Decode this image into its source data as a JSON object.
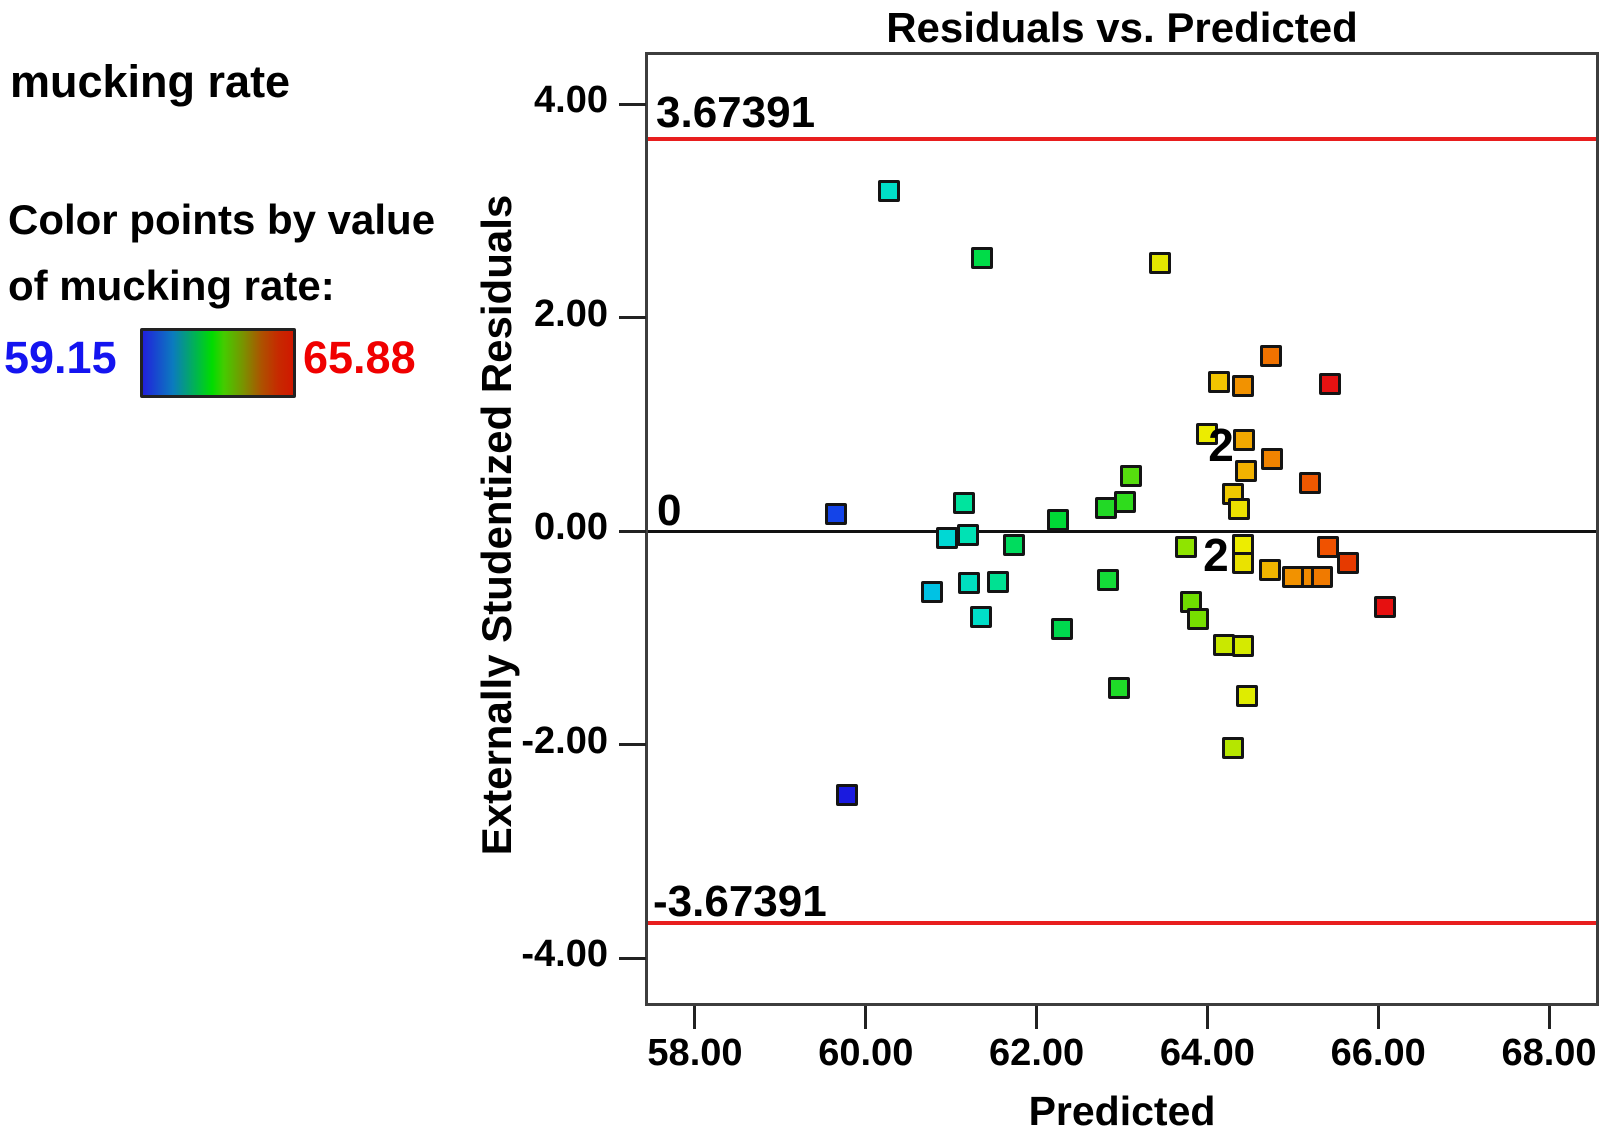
{
  "legend": {
    "factor_label": "mucking rate",
    "color_note_line1": "Color points by value",
    "color_note_line2": "of mucking rate:",
    "min_value": "59.15",
    "max_value": "65.88",
    "min_color": "#1414F0",
    "max_color": "#F00000"
  },
  "chart_data": {
    "type": "scatter",
    "title": "Residuals vs. Predicted",
    "xlabel": "Predicted",
    "ylabel": "Externally Studentized Residuals",
    "xlim": [
      57.45,
      68.55
    ],
    "ylim": [
      -4.42,
      4.46
    ],
    "x_tick_values": [
      58,
      60,
      62,
      64,
      66,
      68
    ],
    "x_tick_labels": [
      "58.00",
      "60.00",
      "62.00",
      "64.00",
      "66.00",
      "68.00"
    ],
    "y_tick_values": [
      4,
      2,
      0,
      -2,
      -4
    ],
    "y_tick_labels": [
      "4.00",
      "2.00",
      "0.00",
      "-2.00",
      "-4.00"
    ],
    "grid": false,
    "control_limits": {
      "upper": 3.67391,
      "lower": -3.67391,
      "upper_label": "3.67391",
      "lower_label": "-3.67391",
      "line_color": "#E81E1E"
    },
    "zero_line": {
      "value": 0,
      "label": "0",
      "color": "#111111"
    },
    "count_labels": [
      {
        "text": "2",
        "x": 64.16,
        "y": 0.81
      },
      {
        "text": "2",
        "x": 64.1,
        "y": -0.22
      }
    ],
    "points": [
      {
        "x": 60.27,
        "y": 3.19,
        "color": "#00DFC8"
      },
      {
        "x": 61.36,
        "y": 2.56,
        "color": "#00DC48"
      },
      {
        "x": 63.44,
        "y": 2.51,
        "color": "#E3E600"
      },
      {
        "x": 64.75,
        "y": 1.64,
        "color": "#F07200"
      },
      {
        "x": 64.14,
        "y": 1.4,
        "color": "#F2C400"
      },
      {
        "x": 64.42,
        "y": 1.36,
        "color": "#F29200"
      },
      {
        "x": 65.44,
        "y": 1.38,
        "color": "#E61212"
      },
      {
        "x": 63.99,
        "y": 0.91,
        "color": "#ECEC00"
      },
      {
        "x": 64.43,
        "y": 0.85,
        "color": "#F2A800"
      },
      {
        "x": 64.76,
        "y": 0.68,
        "color": "#F08300"
      },
      {
        "x": 64.45,
        "y": 0.56,
        "color": "#F2B200"
      },
      {
        "x": 65.2,
        "y": 0.45,
        "color": "#F05800"
      },
      {
        "x": 64.3,
        "y": 0.35,
        "color": "#EFC900"
      },
      {
        "x": 64.37,
        "y": 0.21,
        "color": "#EBE000"
      },
      {
        "x": 63.11,
        "y": 0.52,
        "color": "#56DD0E"
      },
      {
        "x": 63.03,
        "y": 0.27,
        "color": "#2FDC1C"
      },
      {
        "x": 62.81,
        "y": 0.22,
        "color": "#22D926"
      },
      {
        "x": 62.25,
        "y": 0.1,
        "color": "#00D936"
      },
      {
        "x": 61.74,
        "y": -0.13,
        "color": "#00DC5E"
      },
      {
        "x": 61.15,
        "y": 0.26,
        "color": "#00E49E"
      },
      {
        "x": 60.95,
        "y": -0.06,
        "color": "#00D8D4"
      },
      {
        "x": 61.2,
        "y": -0.04,
        "color": "#00E2B4"
      },
      {
        "x": 59.65,
        "y": 0.16,
        "color": "#1444E8"
      },
      {
        "x": 60.77,
        "y": -0.57,
        "color": "#00C2E4"
      },
      {
        "x": 61.21,
        "y": -0.49,
        "color": "#00DFC0"
      },
      {
        "x": 61.55,
        "y": -0.48,
        "color": "#00E192"
      },
      {
        "x": 61.35,
        "y": -0.8,
        "color": "#00DFC9"
      },
      {
        "x": 62.84,
        "y": -0.46,
        "color": "#14DC38"
      },
      {
        "x": 62.3,
        "y": -0.92,
        "color": "#00D94E"
      },
      {
        "x": 62.97,
        "y": -1.47,
        "color": "#1FDC28"
      },
      {
        "x": 63.75,
        "y": -0.15,
        "color": "#8FE400"
      },
      {
        "x": 64.42,
        "y": -0.13,
        "color": "#EDED00"
      },
      {
        "x": 64.42,
        "y": -0.3,
        "color": "#EAE200"
      },
      {
        "x": 64.73,
        "y": -0.36,
        "color": "#F2B600"
      },
      {
        "x": 65.0,
        "y": -0.43,
        "color": "#F29200"
      },
      {
        "x": 65.23,
        "y": -0.43,
        "color": "#F08A00"
      },
      {
        "x": 65.34,
        "y": -0.43,
        "color": "#F07A00"
      },
      {
        "x": 65.41,
        "y": -0.15,
        "color": "#F05200"
      },
      {
        "x": 65.65,
        "y": -0.3,
        "color": "#E63A00"
      },
      {
        "x": 66.08,
        "y": -0.71,
        "color": "#E61010"
      },
      {
        "x": 63.81,
        "y": -0.66,
        "color": "#6FDE00"
      },
      {
        "x": 63.89,
        "y": -0.82,
        "color": "#77DF00"
      },
      {
        "x": 64.19,
        "y": -1.07,
        "color": "#C9E800"
      },
      {
        "x": 64.42,
        "y": -1.08,
        "color": "#D5EA00"
      },
      {
        "x": 64.46,
        "y": -1.54,
        "color": "#DFEC00"
      },
      {
        "x": 64.3,
        "y": -2.03,
        "color": "#B5E600"
      },
      {
        "x": 59.78,
        "y": -2.47,
        "color": "#1A1ADF"
      }
    ]
  }
}
